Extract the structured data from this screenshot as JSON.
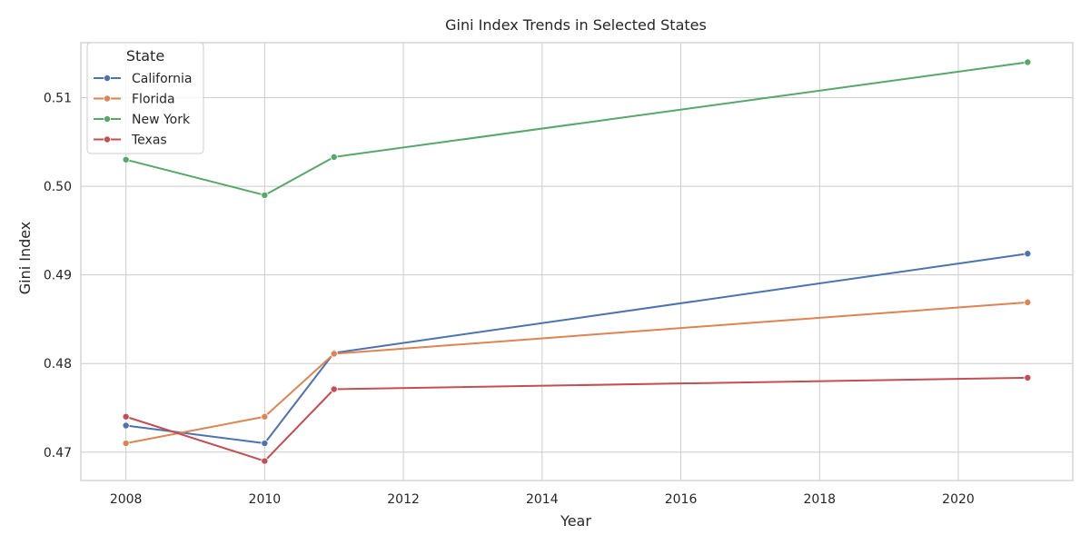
{
  "chart_data": {
    "type": "line",
    "title": "Gini Index Trends in Selected States",
    "xlabel": "Year",
    "ylabel": "Gini Index",
    "xlim": [
      2007.35,
      2021.65
    ],
    "ylim": [
      0.4668,
      0.5162
    ],
    "x_ticks": [
      2008,
      2010,
      2012,
      2014,
      2016,
      2018,
      2020
    ],
    "x_tick_labels": [
      "2008",
      "2010",
      "2012",
      "2014",
      "2016",
      "2018",
      "2020"
    ],
    "y_ticks": [
      0.47,
      0.48,
      0.49,
      0.5,
      0.51
    ],
    "y_tick_labels": [
      "0.47",
      "0.48",
      "0.49",
      "0.50",
      "0.51"
    ],
    "grid": true,
    "legend": {
      "title": "State",
      "placement": "top-left"
    },
    "x": [
      2008,
      2010,
      2011,
      2021
    ],
    "series": [
      {
        "name": "California",
        "color": "#4c72b0",
        "values": [
          0.473,
          0.471,
          0.4812,
          0.4924
        ]
      },
      {
        "name": "Florida",
        "color": "#dd8452",
        "values": [
          0.471,
          0.474,
          0.4811,
          0.4869
        ]
      },
      {
        "name": "New York",
        "color": "#55a868",
        "values": [
          0.503,
          0.499,
          0.5033,
          0.514
        ]
      },
      {
        "name": "Texas",
        "color": "#c44e52",
        "values": [
          0.474,
          0.469,
          0.4771,
          0.4784
        ]
      }
    ]
  }
}
